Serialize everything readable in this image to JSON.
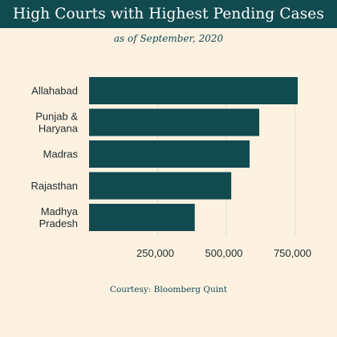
{
  "header": {
    "title": "High Courts with Highest Pending Cases",
    "subtitle": "as of September, 2020",
    "source": "Courtesy: Bloomberg Quint"
  },
  "colors": {
    "bar": "#114a4f",
    "background": "#fdf2e2",
    "grid": "#e6dccd"
  },
  "chart_data": {
    "type": "bar",
    "orientation": "horizontal",
    "categories": [
      [
        "Allahabad"
      ],
      [
        "Punjab &",
        "Haryana"
      ],
      [
        "Madras"
      ],
      [
        "Rajasthan"
      ],
      [
        "Madhya",
        "Pradesh"
      ]
    ],
    "values": [
      760000,
      620000,
      585000,
      518000,
      385000
    ],
    "xlim": [
      0,
      760000
    ],
    "xticks": [
      250000,
      500000,
      750000
    ],
    "xtick_labels": [
      "250,000",
      "500,000",
      "750,000"
    ],
    "grid": true,
    "title": "High Courts with Highest Pending Cases",
    "subtitle": "as of September, 2020"
  }
}
